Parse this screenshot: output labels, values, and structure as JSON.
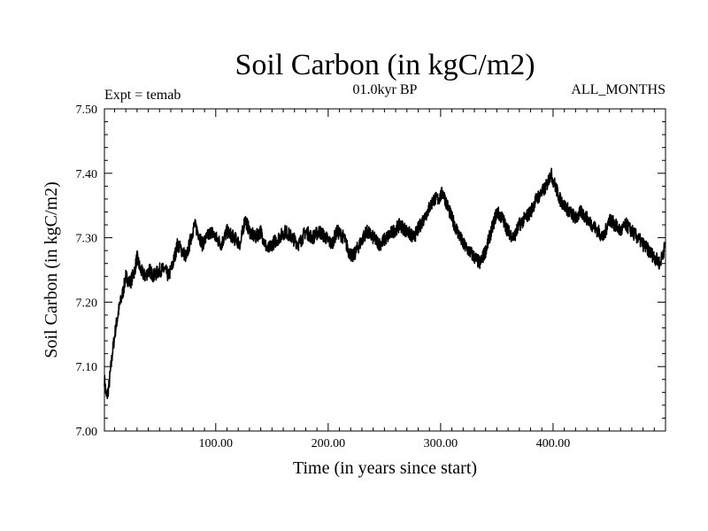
{
  "chart_data": {
    "type": "line",
    "title": "Soil Carbon (in kgC/m2)",
    "subtitle_left": "Expt = temab",
    "subtitle_center": "01.0kyr BP",
    "subtitle_right": "ALL_MONTHS",
    "xlabel": "Time (in years since start)",
    "ylabel": "Soil Carbon (in kgC/m2)",
    "xlim": [
      1,
      500
    ],
    "ylim": [
      7.0,
      7.5
    ],
    "xticks": [
      {
        "value": 100,
        "label": "100.00"
      },
      {
        "value": 200,
        "label": "200.00"
      },
      {
        "value": 300,
        "label": "300.00"
      },
      {
        "value": 400,
        "label": "400.00"
      }
    ],
    "yticks": [
      {
        "value": 7.0,
        "label": "7.00"
      },
      {
        "value": 7.1,
        "label": "7.10"
      },
      {
        "value": 7.2,
        "label": "7.20"
      },
      {
        "value": 7.3,
        "label": "7.30"
      },
      {
        "value": 7.4,
        "label": "7.40"
      },
      {
        "value": 7.5,
        "label": "7.50"
      }
    ],
    "series": [
      {
        "name": "Soil Carbon",
        "x": [
          1,
          3,
          5,
          8,
          11,
          14,
          18,
          20,
          24,
          28,
          30,
          33,
          37,
          41,
          45,
          50,
          55,
          58,
          62,
          66,
          70,
          74,
          78,
          81,
          84,
          88,
          92,
          96,
          100,
          105,
          110,
          116,
          122,
          126,
          130,
          135,
          140,
          146,
          150,
          156,
          162,
          168,
          174,
          180,
          186,
          192,
          198,
          203,
          208,
          214,
          218,
          222,
          228,
          234,
          240,
          246,
          252,
          258,
          264,
          270,
          276,
          282,
          288,
          294,
          298,
          302,
          306,
          310,
          315,
          320,
          325,
          330,
          335,
          340,
          345,
          350,
          355,
          360,
          365,
          370,
          375,
          380,
          385,
          390,
          394,
          398,
          402,
          406,
          410,
          415,
          420,
          425,
          430,
          435,
          440,
          445,
          450,
          455,
          460,
          465,
          470,
          475,
          480,
          485,
          490,
          495,
          500
        ],
        "y": [
          7.08,
          7.05,
          7.07,
          7.12,
          7.16,
          7.19,
          7.22,
          7.24,
          7.23,
          7.25,
          7.27,
          7.25,
          7.24,
          7.25,
          7.24,
          7.25,
          7.25,
          7.24,
          7.26,
          7.29,
          7.28,
          7.27,
          7.3,
          7.32,
          7.31,
          7.29,
          7.3,
          7.31,
          7.3,
          7.29,
          7.31,
          7.3,
          7.29,
          7.33,
          7.31,
          7.3,
          7.31,
          7.28,
          7.29,
          7.3,
          7.31,
          7.3,
          7.29,
          7.31,
          7.3,
          7.31,
          7.3,
          7.29,
          7.31,
          7.3,
          7.28,
          7.27,
          7.29,
          7.31,
          7.3,
          7.29,
          7.3,
          7.31,
          7.32,
          7.31,
          7.3,
          7.32,
          7.34,
          7.36,
          7.36,
          7.37,
          7.35,
          7.33,
          7.31,
          7.29,
          7.28,
          7.27,
          7.26,
          7.28,
          7.31,
          7.34,
          7.33,
          7.31,
          7.3,
          7.32,
          7.33,
          7.34,
          7.36,
          7.37,
          7.38,
          7.4,
          7.38,
          7.36,
          7.35,
          7.34,
          7.33,
          7.34,
          7.33,
          7.32,
          7.31,
          7.3,
          7.33,
          7.32,
          7.31,
          7.32,
          7.31,
          7.3,
          7.29,
          7.28,
          7.27,
          7.26,
          7.29
        ]
      }
    ]
  }
}
